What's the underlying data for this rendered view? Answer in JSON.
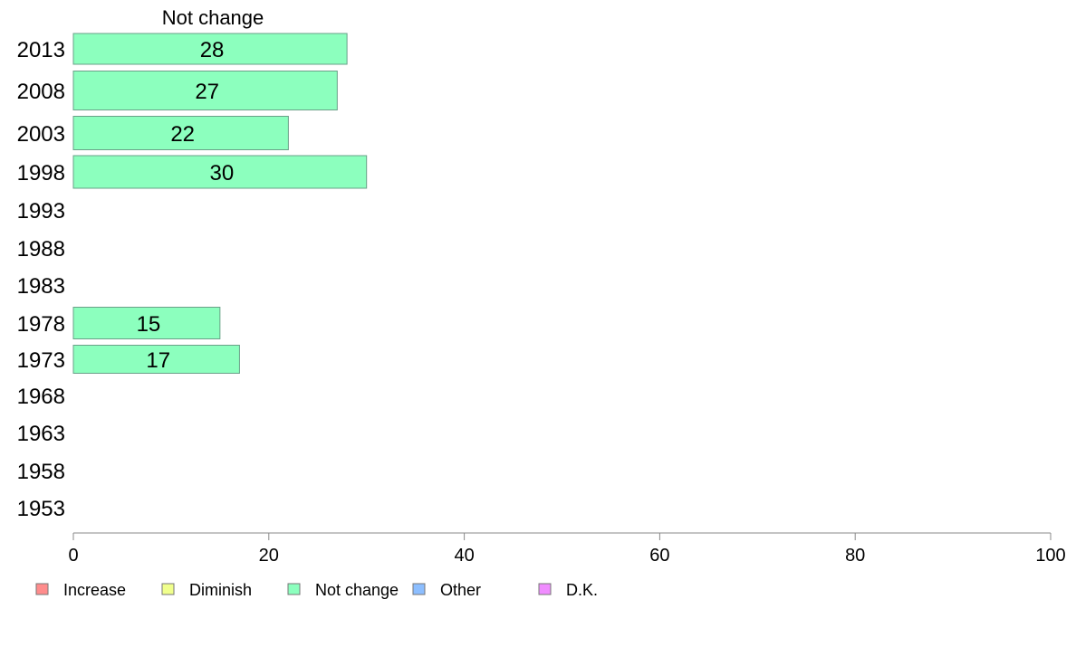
{
  "chart_data": {
    "type": "bar",
    "orientation": "horizontal",
    "title": "Not change",
    "categories": [
      "2013",
      "2008",
      "2003",
      "1998",
      "1993",
      "1988",
      "1983",
      "1978",
      "1973",
      "1968",
      "1963",
      "1958",
      "1953"
    ],
    "series": [
      {
        "name": "Not change",
        "color": "#8cffbe",
        "values": [
          28,
          27,
          22,
          30,
          null,
          null,
          null,
          15,
          17,
          null,
          null,
          null,
          null
        ]
      }
    ],
    "xlim": [
      0,
      100
    ],
    "xticks": [
      "0",
      "20",
      "40",
      "60",
      "80",
      "100"
    ],
    "xlabel": "",
    "ylabel": "",
    "grid": false,
    "legend_position": "bottom",
    "legend": [
      {
        "label": "Increase",
        "color": "#ff8c8c"
      },
      {
        "label": "Diminish",
        "color": "#f0ff8c"
      },
      {
        "label": "Not change",
        "color": "#8cffbe"
      },
      {
        "label": "Other",
        "color": "#8cbeff"
      },
      {
        "label": "D.K.",
        "color": "#f08cff"
      }
    ]
  }
}
